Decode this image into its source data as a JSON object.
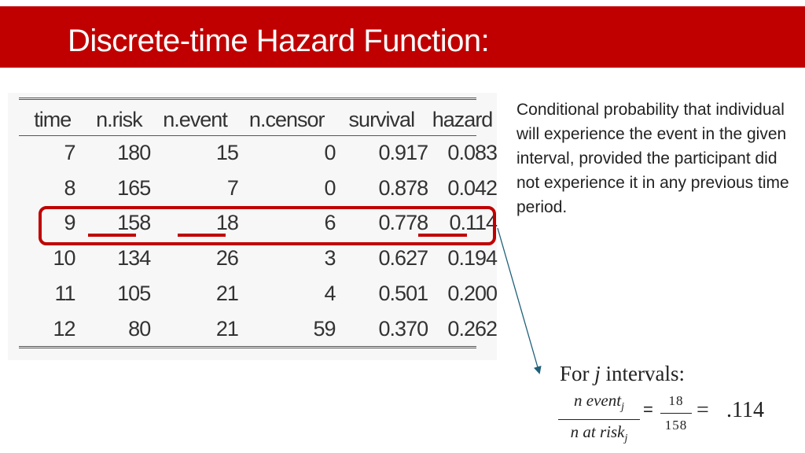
{
  "slide": {
    "title": "Discrete-time Hazard Function:"
  },
  "table": {
    "columns": [
      "time",
      "n.risk",
      "n.event",
      "n.censor",
      "survival",
      "hazard"
    ],
    "rows": [
      [
        "7",
        "180",
        "15",
        "0",
        "0.917",
        "0.083"
      ],
      [
        "8",
        "165",
        "7",
        "0",
        "0.878",
        "0.042"
      ],
      [
        "9",
        "158",
        "18",
        "6",
        "0.778",
        "0.114"
      ],
      [
        "10",
        "134",
        "26",
        "3",
        "0.627",
        "0.194"
      ],
      [
        "11",
        "105",
        "21",
        "4",
        "0.501",
        "0.200"
      ],
      [
        "12",
        "80",
        "21",
        "59",
        "0.370",
        "0.262"
      ]
    ],
    "highlighted_row": "9"
  },
  "description": "Conditional probability that individual will experience the event in the given interval, provided the participant did not experience it in any previous time period.",
  "formula": {
    "label_prefix": "For ",
    "label_var": "j",
    "label_suffix": " intervals:",
    "num_text": "n event",
    "num_sub": "j",
    "den_text": "n at risk",
    "den_sub": "j",
    "equals1": "=",
    "value_num": "18",
    "value_den": "158",
    "equals2": "=",
    "result": ".114"
  },
  "colors": {
    "accent": "#c00000",
    "arrow": "#1f5f7a"
  }
}
